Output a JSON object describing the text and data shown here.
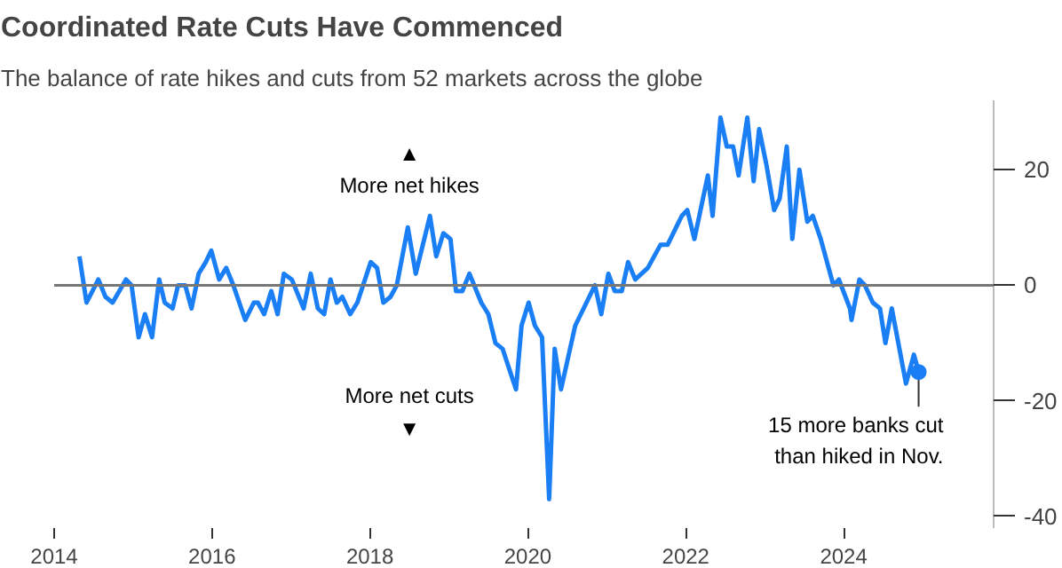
{
  "chart_data": {
    "type": "line",
    "title": "Coordinated Rate Cuts Have Commenced",
    "subtitle": "The balance of rate hikes and cuts from 52 markets across the globe",
    "x": [
      2014.32,
      2014.41,
      2014.56,
      2014.65,
      2014.74,
      2014.91,
      2014.98,
      2015.07,
      2015.15,
      2015.24,
      2015.33,
      2015.4,
      2015.5,
      2015.57,
      2015.66,
      2015.74,
      2015.83,
      2015.92,
      2015.99,
      2016.09,
      2016.18,
      2016.27,
      2016.42,
      2016.53,
      2016.58,
      2016.66,
      2016.75,
      2016.83,
      2016.91,
      2017.01,
      2017.16,
      2017.25,
      2017.34,
      2017.42,
      2017.5,
      2017.58,
      2017.65,
      2017.75,
      2017.84,
      2018.01,
      2018.09,
      2018.17,
      2018.26,
      2018.34,
      2018.48,
      2018.58,
      2018.76,
      2018.84,
      2018.93,
      2019.02,
      2019.09,
      2019.17,
      2019.26,
      2019.41,
      2019.5,
      2019.59,
      2019.68,
      2019.85,
      2019.92,
      2020.01,
      2020.09,
      2020.18,
      2020.27,
      2020.34,
      2020.42,
      2020.6,
      2020.85,
      2020.93,
      2021.02,
      2021.1,
      2021.19,
      2021.27,
      2021.36,
      2021.52,
      2021.68,
      2021.77,
      2021.95,
      2022.02,
      2022.11,
      2022.28,
      2022.34,
      2022.44,
      2022.52,
      2022.6,
      2022.67,
      2022.78,
      2022.86,
      2022.93,
      2023.02,
      2023.12,
      2023.19,
      2023.28,
      2023.35,
      2023.44,
      2023.54,
      2023.61,
      2023.71,
      2023.87,
      2023.94,
      2024.08,
      2024.1,
      2024.2,
      2024.27,
      2024.37,
      2024.46,
      2024.53,
      2024.61,
      2024.79,
      2024.89,
      2024.95
    ],
    "series": [
      {
        "color": "#1a7ef5",
        "values": [
          5,
          -3,
          1,
          -2,
          -3,
          1,
          0,
          -9,
          -5,
          -9,
          1,
          -3,
          -4,
          0,
          0,
          -4,
          2,
          4,
          6,
          1,
          3,
          0,
          -6,
          -3,
          -3,
          -5,
          -1,
          -5,
          2,
          1,
          -4,
          2,
          -4,
          -5,
          1,
          -3,
          -2,
          -5,
          -3,
          4,
          3,
          -3,
          -2,
          0,
          10,
          2,
          12,
          5,
          9,
          8,
          -1,
          -1,
          2,
          -3,
          -5,
          -10,
          -11,
          -18,
          -7,
          -3,
          -7,
          -9,
          -37,
          -11,
          -18,
          -7,
          0,
          -5,
          2,
          -1,
          -1,
          4,
          1,
          3,
          7,
          7,
          12,
          13,
          8,
          19,
          12,
          29,
          24,
          24,
          19,
          29,
          18,
          27,
          21,
          13,
          15,
          24,
          8,
          20,
          11,
          12,
          8,
          0,
          1,
          -4,
          -6,
          1,
          0,
          -3,
          -4,
          -10,
          -4,
          -17,
          -12,
          -15
        ]
      }
    ],
    "xlim": [
      2014,
      2025.9
    ],
    "xticks": [
      2014,
      2016,
      2018,
      2020,
      2022,
      2024
    ],
    "ylim": [
      -42,
      32
    ],
    "yticks": [
      -40,
      -20,
      0,
      20
    ],
    "grid": false,
    "line_style": "solid",
    "marker": "none",
    "ref_lines": [
      {
        "axis": "y",
        "value": 0,
        "color": "#777777"
      }
    ],
    "annotations": [
      "▲\nMore net hikes",
      "More net cuts\n▼",
      {
        "text": "15 more banks cut\nthan hiked in Nov.",
        "x": 2024.95,
        "y": -15
      }
    ]
  }
}
